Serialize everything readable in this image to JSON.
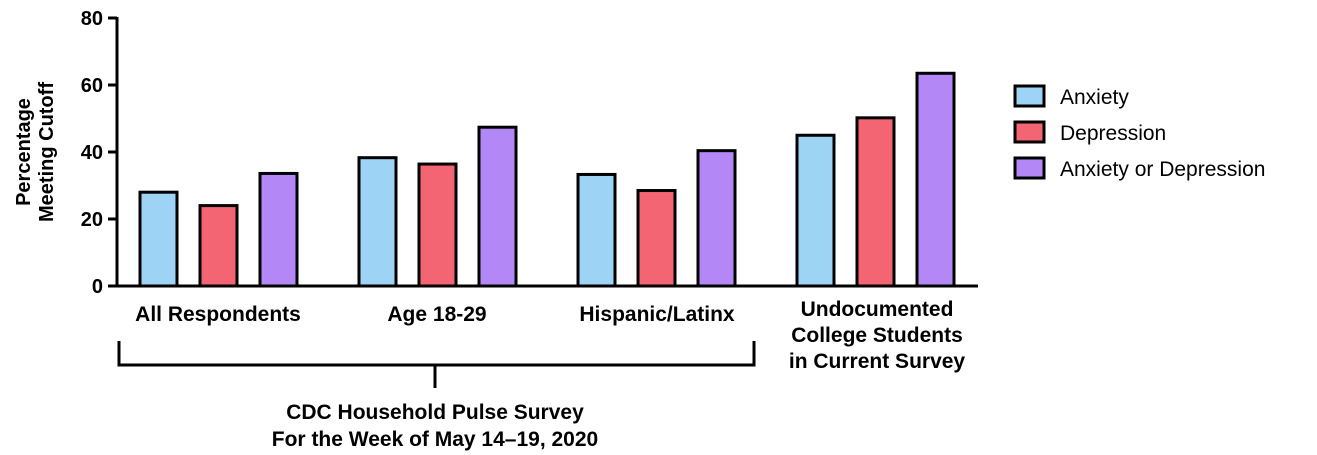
{
  "chart_data": {
    "type": "bar",
    "ylabel": [
      "Percentage",
      "Meeting Cutoff"
    ],
    "ylim": [
      0,
      80
    ],
    "yticks": [
      "0",
      "20",
      "40",
      "60",
      "80"
    ],
    "categories": [
      [
        "All Respondents"
      ],
      [
        "Age 18-29"
      ],
      [
        "Hispanic/Latinx"
      ],
      [
        "Undocumented",
        "College Students",
        "in Current Survey"
      ]
    ],
    "series": [
      {
        "name": "Anxiety",
        "color": "#9dd3f4",
        "values": [
          28,
          38.3,
          33.3,
          45
        ]
      },
      {
        "name": "Depression",
        "color": "#f46574",
        "values": [
          24,
          36.4,
          28.5,
          50.2
        ]
      },
      {
        "name": "Anxiety or Depression",
        "color": "#b487f7",
        "values": [
          33.6,
          47.4,
          40.4,
          63.5
        ]
      }
    ],
    "bracket_label": [
      "CDC Household Pulse Survey",
      "For the Week of May 14–19, 2020"
    ],
    "legend_position": "right",
    "grid": false
  }
}
